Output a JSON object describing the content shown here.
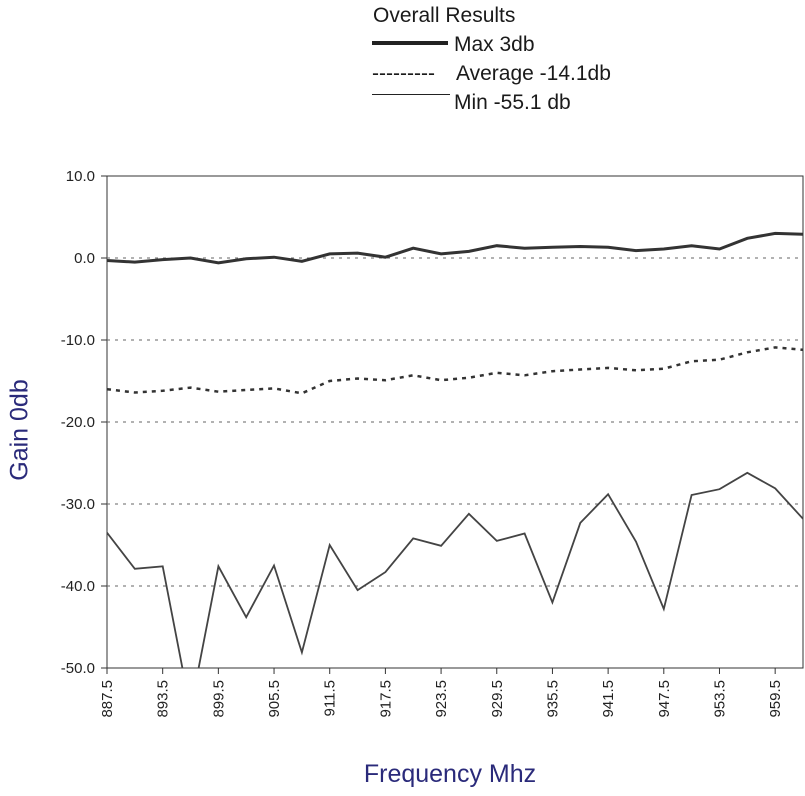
{
  "legend": {
    "title": "Overall Results",
    "entries": [
      {
        "style": "thick-solid",
        "text": "Max 3db"
      },
      {
        "style": "dashed",
        "prefix": "---------",
        "text": "Average -14.1db"
      },
      {
        "style": "thin-solid",
        "text": "Min -55.1 db"
      }
    ]
  },
  "chart_data": {
    "type": "line",
    "xlabel": "Frequency Mhz",
    "ylabel": "Gain 0db",
    "ylim": [
      -50,
      10
    ],
    "xlim": [
      887.5,
      962.5
    ],
    "yticks": [
      "10.0",
      "0.0",
      "-10.0",
      "-20.0",
      "-30.0",
      "-40.0",
      "-50.0"
    ],
    "xtick_labels": [
      "887.5",
      "893.5",
      "899.5",
      "905.5",
      "911.5",
      "917.5",
      "923.5",
      "929.5",
      "935.5",
      "941.5",
      "947.5",
      "953.5",
      "959.5"
    ],
    "grid": "horizontal dotted",
    "x": [
      887.5,
      890.5,
      893.5,
      896.5,
      899.5,
      902.5,
      905.5,
      908.5,
      911.5,
      914.5,
      917.5,
      920.5,
      923.5,
      926.5,
      929.5,
      932.5,
      935.5,
      938.5,
      941.5,
      944.5,
      947.5,
      950.5,
      953.5,
      956.5,
      959.5,
      962.5
    ],
    "series": [
      {
        "name": "Max 3db",
        "style": "thick-solid",
        "values": [
          -0.3,
          -0.5,
          -0.2,
          0.0,
          -0.6,
          -0.1,
          0.1,
          -0.4,
          0.5,
          0.6,
          0.1,
          1.2,
          0.5,
          0.8,
          1.5,
          1.2,
          1.3,
          1.4,
          1.3,
          0.9,
          1.1,
          1.5,
          1.1,
          2.4,
          3.0,
          2.9
        ]
      },
      {
        "name": "Average -14.1db",
        "style": "dashed",
        "values": [
          -16.0,
          -16.4,
          -16.2,
          -15.8,
          -16.3,
          -16.1,
          -15.9,
          -16.5,
          -15.0,
          -14.7,
          -14.9,
          -14.3,
          -14.9,
          -14.6,
          -14.0,
          -14.3,
          -13.8,
          -13.6,
          -13.4,
          -13.7,
          -13.5,
          -12.6,
          -12.4,
          -11.5,
          -10.9,
          -11.2
        ]
      },
      {
        "name": "Min -55.1 db",
        "style": "thin-solid",
        "values": [
          -33.5,
          -37.9,
          -37.6,
          -55.1,
          -37.6,
          -43.8,
          -37.5,
          -48.1,
          -35.0,
          -40.5,
          -38.3,
          -34.2,
          -35.1,
          -31.2,
          -34.5,
          -33.6,
          -42.0,
          -32.3,
          -28.8,
          -34.6,
          -42.8,
          -28.9,
          -28.2,
          -26.2,
          -28.1,
          -31.8
        ]
      }
    ]
  }
}
